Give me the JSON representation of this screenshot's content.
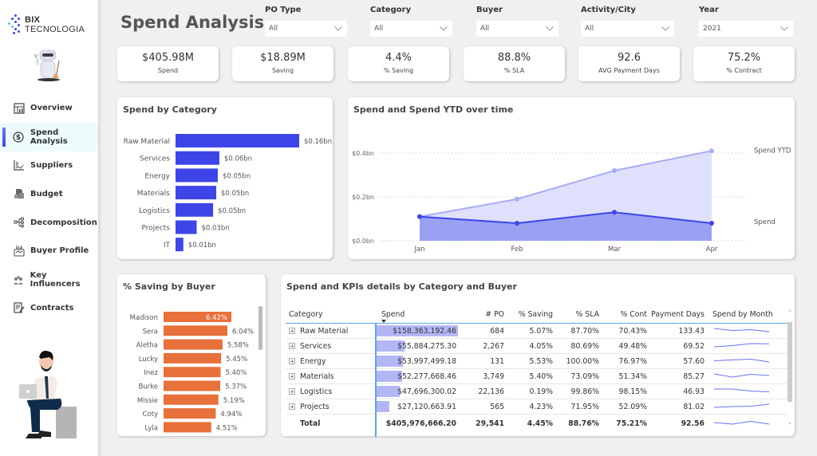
{
  "brand": {
    "name_bold": "BIX",
    "name_rest": " TECNOLOGIA"
  },
  "sidebar": {
    "items": [
      {
        "label": "Overview",
        "icon": "calendar-chart-icon",
        "active": false
      },
      {
        "label": "Spend Analysis",
        "icon": "dollar-circle-icon",
        "active": true
      },
      {
        "label": "Suppliers",
        "icon": "line-chart-icon",
        "active": false
      },
      {
        "label": "Budget",
        "icon": "budget-building-icon",
        "active": false
      },
      {
        "label": "Decomposition",
        "icon": "decomposition-tree-icon",
        "active": false
      },
      {
        "label": "Buyer Profile",
        "icon": "sla-handshake-icon",
        "active": false
      },
      {
        "label": "Key Influencers",
        "icon": "people-group-icon",
        "active": false
      },
      {
        "label": "Contracts",
        "icon": "contract-edit-icon",
        "active": false
      }
    ]
  },
  "header": {
    "title": "Spend Analysis"
  },
  "filters": [
    {
      "label": "PO Type",
      "value": "All"
    },
    {
      "label": "Category",
      "value": "All"
    },
    {
      "label": "Buyer",
      "value": "All"
    },
    {
      "label": "Activity/City",
      "value": "All"
    },
    {
      "label": "Year",
      "value": "2021"
    }
  ],
  "kpis": [
    {
      "value": "$405.98M",
      "label": "Spend"
    },
    {
      "value": "$18.89M",
      "label": "Saving"
    },
    {
      "value": "4.4%",
      "label": "% Saving"
    },
    {
      "value": "88.8%",
      "label": "% SLA"
    },
    {
      "value": "92.6",
      "label": "AVG Payment Days"
    },
    {
      "value": "75.2%",
      "label": "% Contract"
    }
  ],
  "colors": {
    "primary_bar": "#3d45e8",
    "saving_bar": "#e8703a",
    "ytd_line": "#a9acf5",
    "ytd_area": "#dfe0fb",
    "spend_area": "#9aa0f2",
    "databar": "#b3b6f5",
    "accent_line": "#5aa6e6"
  },
  "chart_data": [
    {
      "type": "bar",
      "title": "Spend by Category",
      "orientation": "horizontal",
      "categories": [
        "Raw Material",
        "Services",
        "Energy",
        "Materials",
        "Logistics",
        "Projects",
        "IT"
      ],
      "values": [
        0.158,
        0.056,
        0.054,
        0.052,
        0.048,
        0.027,
        0.01
      ],
      "value_labels": [
        "$0.16bn",
        "$0.06bn",
        "$0.05bn",
        "$0.05bn",
        "$0.05bn",
        "$0.03bn",
        "$0.01bn"
      ],
      "unit": "$bn"
    },
    {
      "type": "area",
      "title": "Spend and Spend YTD over time",
      "x": [
        "Jan",
        "Feb",
        "Mar",
        "Apr"
      ],
      "yticks": [
        "$0.0bn",
        "$0.2bn",
        "$0.4bn"
      ],
      "ylim": [
        0,
        0.4
      ],
      "grid": true,
      "legend": "right",
      "series": [
        {
          "name": "Spend YTD",
          "values": [
            0.11,
            0.19,
            0.32,
            0.41
          ]
        },
        {
          "name": "Spend",
          "values": [
            0.11,
            0.08,
            0.13,
            0.08
          ]
        }
      ]
    },
    {
      "type": "bar",
      "title": "% Saving by Buyer",
      "orientation": "horizontal",
      "categories": [
        "Madison",
        "Sera",
        "Aletha",
        "Lucky",
        "Inez",
        "Burke",
        "Missie",
        "Coty",
        "Lyla"
      ],
      "values": [
        6.42,
        6.04,
        5.58,
        5.45,
        5.4,
        5.37,
        5.19,
        4.94,
        4.51
      ],
      "value_labels": [
        "6.42%",
        "6.04%",
        "5.58%",
        "5.45%",
        "5.40%",
        "5.37%",
        "5.19%",
        "4.94%",
        "4.51%"
      ],
      "unit": "%"
    },
    {
      "type": "table",
      "title": "Spend and KPIs details by Category and Buyer",
      "columns": [
        "Category",
        "Spend",
        "# PO",
        "% Saving",
        "% SLA",
        "% Cont",
        "Payment Days",
        "Spend by Month"
      ],
      "rows": [
        {
          "category": "Raw Material",
          "spend": "$158,363,192.46",
          "spend_value": 158363192.46,
          "po": "684",
          "saving": "5.07%",
          "sla": "87.70%",
          "cont": "70.43%",
          "pdays": "133.43",
          "spark": [
            0.7,
            0.45,
            0.55,
            0.3
          ]
        },
        {
          "category": "Services",
          "spend": "$55,884,275.30",
          "spend_value": 55884275.3,
          "po": "2,267",
          "saving": "4.05%",
          "sla": "80.69%",
          "cont": "49.48%",
          "pdays": "69.52",
          "spark": [
            0.3,
            0.45,
            0.7,
            0.68
          ]
        },
        {
          "category": "Energy",
          "spend": "$53,997,499.18",
          "spend_value": 53997499.18,
          "po": "131",
          "saving": "5.53%",
          "sla": "100.00%",
          "cont": "76.97%",
          "pdays": "57.60",
          "spark": [
            0.45,
            0.55,
            0.65,
            0.3
          ]
        },
        {
          "category": "Materials",
          "spend": "$52,277,668.46",
          "spend_value": 52277668.46,
          "po": "3,749",
          "saving": "5.40%",
          "sla": "73.09%",
          "cont": "51.34%",
          "pdays": "85.27",
          "spark": [
            0.7,
            0.3,
            0.65,
            0.5
          ]
        },
        {
          "category": "Logistics",
          "spend": "$47,696,300.02",
          "spend_value": 47696300.02,
          "po": "22,136",
          "saving": "0.19%",
          "sla": "99.86%",
          "cont": "98.15%",
          "pdays": "46.93",
          "spark": [
            0.7,
            0.7,
            0.45,
            0.35
          ]
        },
        {
          "category": "Projects",
          "spend": "$27,120,663.91",
          "spend_value": 27120663.91,
          "po": "565",
          "saving": "4.23%",
          "sla": "71.95%",
          "cont": "52.09%",
          "pdays": "81.02",
          "spark": [
            0.3,
            0.4,
            0.45,
            0.7
          ]
        }
      ],
      "total": {
        "label": "Total",
        "spend": "$405,976,666.20",
        "po": "29,541",
        "saving": "4.45%",
        "sla": "88.76%",
        "cont": "75.21%",
        "pdays": "92.56",
        "spark": [
          0.5,
          0.3,
          0.65,
          0.3
        ]
      },
      "sort_column": "Spend"
    }
  ]
}
